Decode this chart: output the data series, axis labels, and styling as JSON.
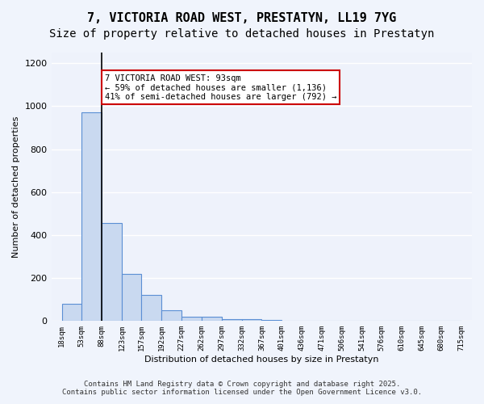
{
  "title_line1": "7, VICTORIA ROAD WEST, PRESTATYN, LL19 7YG",
  "title_line2": "Size of property relative to detached houses in Prestatyn",
  "xlabel": "Distribution of detached houses by size in Prestatyn",
  "ylabel": "Number of detached properties",
  "bar_left_edges": [
    18,
    53,
    88,
    123,
    157,
    192,
    227,
    262,
    297,
    332,
    367,
    401,
    436,
    471,
    506,
    541,
    576,
    610,
    645,
    680
  ],
  "bar_widths": [
    35,
    35,
    35,
    34,
    35,
    35,
    35,
    35,
    35,
    35,
    34,
    35,
    35,
    35,
    35,
    35,
    34,
    35,
    35,
    35
  ],
  "bar_heights": [
    80,
    970,
    455,
    220,
    120,
    50,
    20,
    20,
    10,
    10,
    5,
    2,
    1,
    0,
    0,
    0,
    0,
    0,
    0,
    0
  ],
  "xtick_labels": [
    "18sqm",
    "53sqm",
    "88sqm",
    "123sqm",
    "157sqm",
    "192sqm",
    "227sqm",
    "262sqm",
    "297sqm",
    "332sqm",
    "367sqm",
    "401sqm",
    "436sqm",
    "471sqm",
    "506sqm",
    "541sqm",
    "576sqm",
    "610sqm",
    "645sqm",
    "680sqm",
    "715sqm"
  ],
  "xtick_positions": [
    18,
    53,
    88,
    123,
    157,
    192,
    227,
    262,
    297,
    332,
    367,
    401,
    436,
    471,
    506,
    541,
    576,
    610,
    645,
    680,
    715
  ],
  "ylim": [
    0,
    1250
  ],
  "xlim": [
    0,
    733
  ],
  "bar_color": "#c9d9f0",
  "bar_edge_color": "#5b8fd4",
  "vline_x": 88,
  "vline_color": "#000000",
  "annotation_text": "7 VICTORIA ROAD WEST: 93sqm\n← 59% of detached houses are smaller (1,136)\n41% of semi-detached houses are larger (792) →",
  "annotation_box_color": "#cc0000",
  "background_color": "#eef2fb",
  "grid_color": "#ffffff",
  "footer_line1": "Contains HM Land Registry data © Crown copyright and database right 2025.",
  "footer_line2": "Contains public sector information licensed under the Open Government Licence v3.0.",
  "title_fontsize": 11,
  "subtitle_fontsize": 10,
  "annotation_fontsize": 7.5,
  "footer_fontsize": 6.5
}
